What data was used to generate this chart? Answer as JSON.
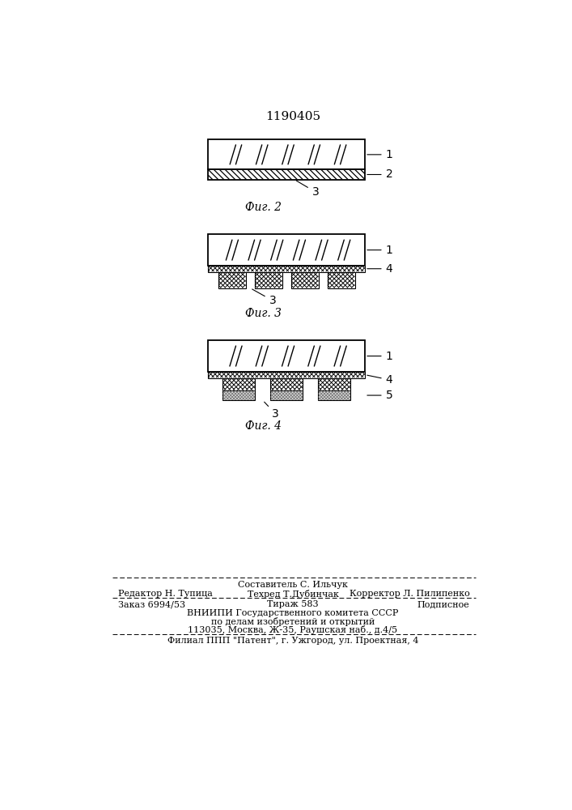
{
  "title": "1190405",
  "background_color": "#ffffff",
  "fig2_label": "Фиг. 2",
  "fig3_label": "Фиг. 3",
  "fig4_label": "Фиг. 4",
  "footer_sestavitel": "Составитель С. Ильчук",
  "footer_redaktor": "Редактор Н. Тупица",
  "footer_tehred": "Техред Т.Дубинчак",
  "footer_korrektor": "Корректор Л. Пилипенко",
  "footer_zakaz": "Заказ 6994/53",
  "footer_tirazh": "Тираж 583",
  "footer_podpisnoe": "Подписное",
  "footer_vniip1": "ВНИИПИ Государственного комитета СССР",
  "footer_vniip2": "по делам изобретений и открытий",
  "footer_vniip3": "113035, Москва, Ж-35, Раушская наб., д.4/5",
  "footer_filial": "Филиал ППП \"Патент\", г. Ужгород, ул. Проектная, 4"
}
